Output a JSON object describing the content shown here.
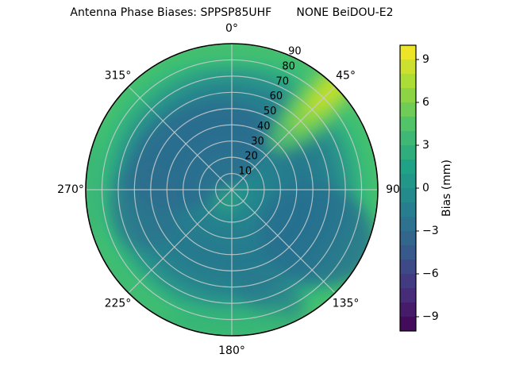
{
  "chart_data": {
    "type": "polar_contour",
    "title": "Antenna Phase Biases: SPPSP85UHF       NONE BeiDOU-E2",
    "value_label": "Bias (mm)",
    "vmin": -10,
    "vmax": 10,
    "level_step": 1,
    "r_max": 90,
    "r_tick_values": [
      10,
      20,
      30,
      40,
      50,
      60,
      70,
      80,
      90
    ],
    "r_tick_labels": [
      "10",
      "20",
      "30",
      "40",
      "50",
      "60",
      "70",
      "80",
      "90"
    ],
    "theta_ticks": [
      {
        "angle_deg": 0,
        "label": "0°"
      },
      {
        "angle_deg": 45,
        "label": "45°"
      },
      {
        "angle_deg": 90,
        "label": "90"
      },
      {
        "angle_deg": 135,
        "label": "135°"
      },
      {
        "angle_deg": 180,
        "label": "180°"
      },
      {
        "angle_deg": 225,
        "label": "225°"
      },
      {
        "angle_deg": 270,
        "label": "270°"
      },
      {
        "angle_deg": 315,
        "label": "315°"
      }
    ],
    "colorbar": {
      "label": "Bias (mm)",
      "tick_values": [
        9,
        6,
        3,
        0,
        -3,
        -6,
        -9
      ],
      "tick_labels": [
        "9",
        "6",
        "3",
        "0",
        "−3",
        "−6",
        "−9"
      ]
    },
    "colormap": {
      "name": "viridis",
      "stops": [
        [
          0.0,
          "#440154"
        ],
        [
          0.143,
          "#46327e"
        ],
        [
          0.286,
          "#365c8d"
        ],
        [
          0.429,
          "#277f8e"
        ],
        [
          0.571,
          "#1fa187"
        ],
        [
          0.714,
          "#4ac16d"
        ],
        [
          0.857,
          "#a0da39"
        ],
        [
          1.0,
          "#fde725"
        ]
      ]
    },
    "field_regions_mm": [
      {
        "region": "center (r < 15)",
        "bias": 0.5
      },
      {
        "region": "mid annulus (r 20-70)",
        "bias": -1
      },
      {
        "region": "northwest blob (az 290-350, r 30-70)",
        "bias": -2.5
      },
      {
        "region": "southeast blob (az 95-165, r 35-85)",
        "bias": -2
      },
      {
        "region": "outer ring (r > 78)",
        "bias": 3.5
      },
      {
        "region": "northeast rim (az 20-75)",
        "bias": 8.5
      },
      {
        "region": "field minimum",
        "bias": -3
      },
      {
        "region": "field maximum",
        "bias": 9
      }
    ]
  }
}
